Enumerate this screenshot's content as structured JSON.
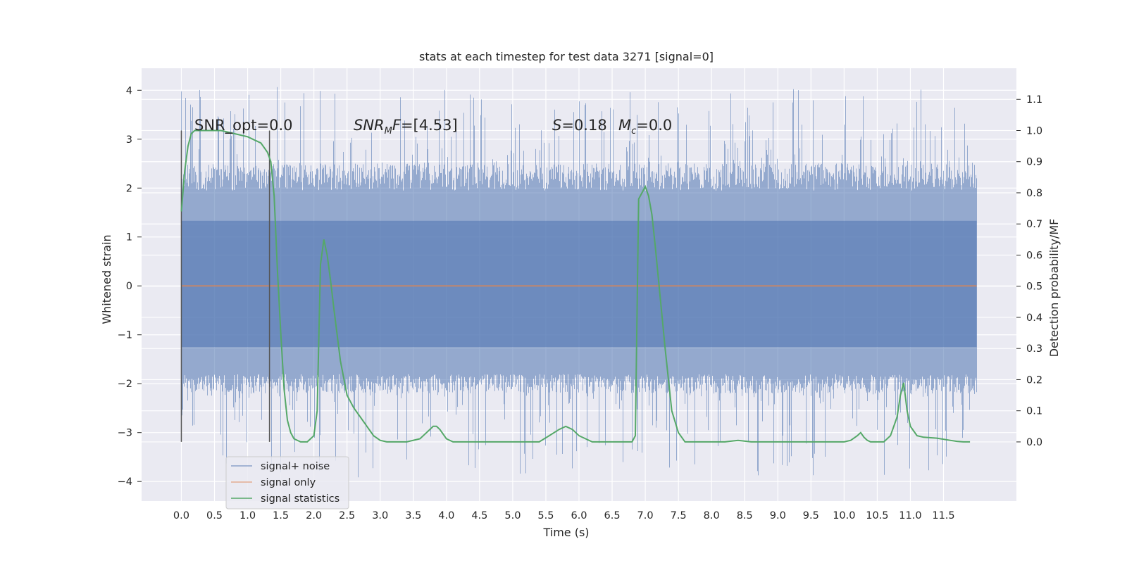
{
  "chart_data": {
    "type": "line",
    "title": "stats at each timestep for test data 3271 [signal=0]",
    "xlabel": "Time (s)",
    "ylabel_left": "Whitened strain",
    "ylabel_right": "Detection probability/MF",
    "xlim": [
      -0.6,
      12.6
    ],
    "ylim_left": [
      -4.4,
      4.45
    ],
    "ylim_right": [
      -0.19,
      1.2
    ],
    "xticks": [
      "0.0",
      "0.5",
      "1.0",
      "1.5",
      "2.0",
      "2.5",
      "3.0",
      "3.5",
      "4.0",
      "4.5",
      "5.0",
      "5.5",
      "6.0",
      "6.5",
      "7.0",
      "7.5",
      "8.0",
      "8.5",
      "9.0",
      "9.5",
      "10.0",
      "10.5",
      "11.0",
      "11.5"
    ],
    "yticks_left": [
      "4",
      "3",
      "2",
      "1",
      "0",
      "−1",
      "−2",
      "−3",
      "−4"
    ],
    "yticks_right": [
      "1.1",
      "1.0",
      "0.9",
      "0.8",
      "0.7",
      "0.6",
      "0.5",
      "0.4",
      "0.3",
      "0.2",
      "0.1",
      "0.0"
    ],
    "grid": true,
    "legend_position": "lower-left",
    "annotations": {
      "snr_opt": "SNR_opt=0.0",
      "snr_mf_sym": "SNR",
      "snr_mf_sub": "M",
      "snr_mf_f": "F",
      "snr_mf_val": "=[4.53]",
      "s_sym": "S",
      "s_val": "=0.18",
      "mc_sym": "M",
      "mc_sub": "c",
      "mc_val": "=0.0"
    },
    "window_markers_x": [
      0.0,
      1.33
    ],
    "series": [
      {
        "name": "signal+ noise",
        "color": "#4c72b0",
        "x_range": [
          0.0,
          12.0
        ],
        "typical_envelope": [
          -2.2,
          2.5
        ],
        "extremes": [
          -3.95,
          4.1
        ]
      },
      {
        "name": "signal only",
        "color": "#dd8452",
        "x_range": [
          0.0,
          12.0
        ],
        "values": [
          0.0,
          0.0
        ]
      },
      {
        "name": "signal statistics",
        "color": "#55a868",
        "x": [
          0.0,
          0.05,
          0.1,
          0.15,
          0.2,
          0.3,
          0.4,
          0.6,
          0.8,
          1.0,
          1.1,
          1.2,
          1.3,
          1.35,
          1.4,
          1.45,
          1.5,
          1.55,
          1.6,
          1.65,
          1.7,
          1.8,
          1.9,
          2.0,
          2.05,
          2.1,
          2.15,
          2.2,
          2.25,
          2.3,
          2.4,
          2.5,
          2.6,
          2.7,
          2.8,
          2.9,
          3.0,
          3.1,
          3.2,
          3.4,
          3.6,
          3.7,
          3.8,
          3.85,
          3.9,
          4.0,
          4.1,
          4.3,
          4.5,
          5.0,
          5.4,
          5.55,
          5.7,
          5.8,
          5.9,
          6.0,
          6.2,
          6.5,
          6.8,
          6.85,
          6.9,
          6.95,
          7.0,
          7.05,
          7.1,
          7.15,
          7.2,
          7.3,
          7.4,
          7.5,
          7.6,
          7.8,
          8.0,
          8.2,
          8.4,
          8.6,
          9.0,
          10.0,
          10.1,
          10.2,
          10.25,
          10.3,
          10.35,
          10.4,
          10.6,
          10.7,
          10.8,
          10.85,
          10.9,
          10.95,
          11.0,
          11.1,
          11.2,
          11.4,
          11.6,
          11.7,
          11.8,
          11.9
        ],
        "values": [
          0.74,
          0.87,
          0.95,
          0.99,
          1.0,
          1.0,
          1.0,
          1.0,
          0.99,
          0.98,
          0.97,
          0.96,
          0.93,
          0.9,
          0.79,
          0.55,
          0.35,
          0.17,
          0.07,
          0.03,
          0.01,
          0.0,
          0.0,
          0.02,
          0.1,
          0.57,
          0.65,
          0.6,
          0.52,
          0.43,
          0.26,
          0.15,
          0.11,
          0.08,
          0.05,
          0.02,
          0.005,
          0.0,
          0.0,
          0.0,
          0.01,
          0.03,
          0.05,
          0.05,
          0.04,
          0.01,
          0.0,
          0.0,
          0.0,
          0.0,
          0.0,
          0.02,
          0.04,
          0.05,
          0.04,
          0.02,
          0.0,
          0.0,
          0.0,
          0.02,
          0.78,
          0.8,
          0.82,
          0.79,
          0.73,
          0.63,
          0.52,
          0.3,
          0.1,
          0.03,
          0.0,
          0.0,
          0.0,
          0.0,
          0.005,
          0.0,
          0.0,
          0.0,
          0.005,
          0.02,
          0.03,
          0.015,
          0.005,
          0.0,
          0.0,
          0.02,
          0.08,
          0.15,
          0.19,
          0.1,
          0.05,
          0.02,
          0.015,
          0.012,
          0.005,
          0.002,
          0.0,
          0.0
        ]
      }
    ]
  }
}
